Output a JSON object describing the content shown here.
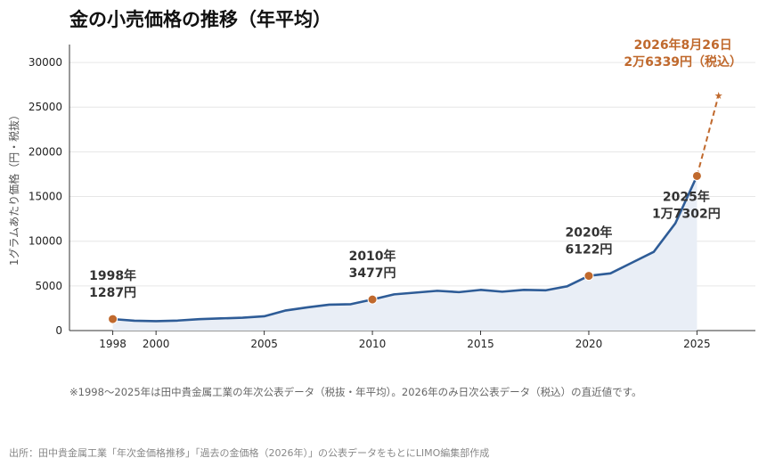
{
  "title": "金の小売価格の推移（年平均）",
  "note": "※1998〜2025年は田中貴金属工業の年次公表データ（税抜・年平均）。2026年のみ日次公表データ（税込）の直近値です。",
  "source": "出所：田中貴金属工業「年次金価格推移」「過去の金価格（2026年）」の公表データをもとにLIMO編集部作成",
  "colors": {
    "line": "#2e5c97",
    "area": "#e9eef6",
    "marker": "#c0692d",
    "projection": "#c0692d",
    "grid": "#e6e6e6"
  },
  "chart_data": {
    "type": "line",
    "ylabel": "1グラムあたり価格（円・税抜）",
    "xlabel": "",
    "xlim": [
      1996,
      2027.7
    ],
    "ylim": [
      0,
      32000
    ],
    "xticks": [
      "1998",
      "2000",
      "2005",
      "2010",
      "2015",
      "2020",
      "2025"
    ],
    "yticks": [
      "0",
      "5000",
      "10000",
      "15000",
      "20000",
      "25000",
      "30000"
    ],
    "grid": true,
    "series": [
      {
        "x": [
          1998,
          1999,
          2000,
          2001,
          2002,
          2003,
          2004,
          2005,
          2006,
          2007,
          2008,
          2009,
          2010,
          2011,
          2012,
          2013,
          2014,
          2015,
          2016,
          2017,
          2018,
          2019,
          2020,
          2021,
          2022,
          2023,
          2024,
          2025
        ],
        "y": [
          1287,
          1100,
          1050,
          1120,
          1280,
          1360,
          1440,
          1600,
          2250,
          2600,
          2900,
          2950,
          3477,
          4050,
          4250,
          4450,
          4300,
          4550,
          4350,
          4550,
          4500,
          4950,
          6122,
          6400,
          7600,
          8800,
          12000,
          17302
        ]
      }
    ],
    "projection": {
      "x": [
        2025,
        2026
      ],
      "y": [
        17302,
        26339
      ]
    },
    "annotations": [
      {
        "label": "1998年\n1287円",
        "x": 1998,
        "y": 1287
      },
      {
        "label": "2010年\n3477円",
        "x": 2010,
        "y": 3477
      },
      {
        "label": "2020年\n6122円",
        "x": 2020,
        "y": 6122
      },
      {
        "label": "2025年\n1万7302円",
        "x": 2025,
        "y": 17302
      },
      {
        "label": "2026年8月26日\n2万6339円（税込）",
        "x": 2026,
        "y": 26339
      }
    ]
  }
}
